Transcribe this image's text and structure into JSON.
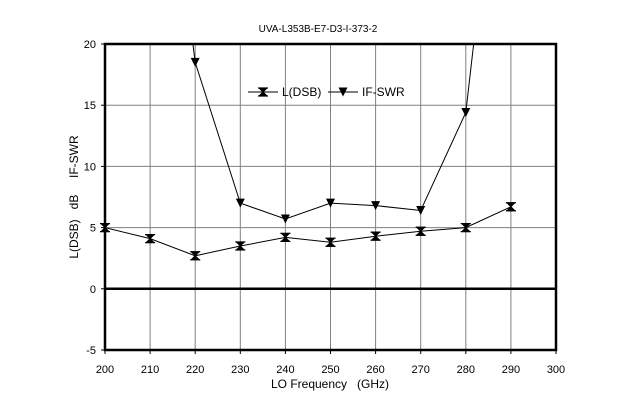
{
  "chart_data": {
    "type": "line",
    "title": "UVA-L353B-E7-D3-I-373-2",
    "xlabel": "LO Frequency   (GHz)",
    "ylabel": "L(DSB)   dB     IF-SWR",
    "xlim": [
      200,
      300
    ],
    "ylim": [
      -5,
      20
    ],
    "x_ticks": [
      200,
      210,
      220,
      230,
      240,
      250,
      260,
      270,
      280,
      290,
      300
    ],
    "y_ticks": [
      -5,
      0,
      5,
      10,
      15,
      20
    ],
    "grid": true,
    "zero_line": true,
    "legend_position": "top-center",
    "series": [
      {
        "name": "L(DSB)",
        "marker": "hourglass",
        "x": [
          200,
          210,
          220,
          230,
          240,
          250,
          260,
          270,
          280,
          290
        ],
        "values": [
          5.0,
          4.1,
          2.7,
          3.5,
          4.2,
          3.8,
          4.3,
          4.7,
          5.0,
          6.7
        ]
      },
      {
        "name": "IF-SWR",
        "marker": "triangle-down",
        "x": [
          220,
          230,
          240,
          250,
          260,
          270,
          280
        ],
        "values": [
          18.5,
          7.0,
          5.7,
          7.0,
          6.8,
          6.4,
          14.4
        ],
        "line_extends_beyond_top": true
      }
    ],
    "colors": {
      "line": "#000000",
      "grid": "#808080",
      "background": "#ffffff"
    }
  }
}
